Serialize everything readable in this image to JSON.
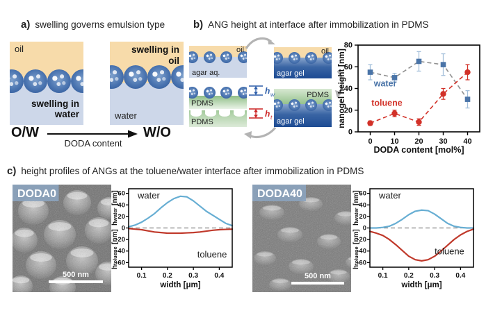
{
  "panel_a": {
    "tag": "a)",
    "title": "swelling governs emulsion type",
    "left_diagram": {
      "oil": "oil",
      "swelling_line1": "swelling in",
      "swelling_line2": "water"
    },
    "right_diagram": {
      "swelling_line1": "swelling in",
      "swelling_line2": "oil",
      "water": "water"
    },
    "left_type": "O/W",
    "right_type": "W/O",
    "arrow_label": "DODA content"
  },
  "panel_b": {
    "tag": "b)",
    "title": "ANG height at interface after immobilization in PDMS",
    "schematic": {
      "oil_aq": {
        "top": "oil",
        "bottom": "agar aq."
      },
      "oil_gel": {
        "top": "oil",
        "bottom": "agar gel"
      },
      "pdms_top": "PDMS",
      "pdms_bottom": "PDMS",
      "pdms_gel": {
        "top": "PDMS",
        "bottom": "agar gel"
      },
      "hw": {
        "base": "h",
        "sub": "w"
      },
      "ht": {
        "base": "h",
        "sub": "t"
      }
    }
  },
  "panel_c": {
    "tag": "c)",
    "title": "height profiles of ANGs at the toluene/water interface after immobilization in PDMS",
    "sem_left": {
      "label": "DODA0",
      "scalebar": "500 nm"
    },
    "sem_right": {
      "label": "DODA40",
      "scalebar": "500 nm"
    }
  },
  "chart_data": [
    {
      "id": "nanogel-height",
      "type": "scatter",
      "xlabel": "DODA content [mol%]",
      "ylabel": "nanogel height [nm]",
      "xlim": [
        -5,
        45
      ],
      "ylim": [
        0,
        80
      ],
      "xticks": [
        0,
        10,
        20,
        30,
        40
      ],
      "yticks": [
        0,
        20,
        40,
        60,
        80
      ],
      "x": [
        0,
        10,
        20,
        30,
        40
      ],
      "grid": false,
      "series": [
        {
          "name": "water",
          "marker": "square",
          "color": "#4a74a8",
          "line_color": "#909090",
          "err_color": "#a3bfda",
          "values": [
            55,
            50,
            65,
            62,
            30
          ],
          "errors": [
            7,
            4,
            9,
            10,
            8
          ],
          "label_x": 1.5,
          "label_y": 42
        },
        {
          "name": "toluene",
          "marker": "circle",
          "color": "#d23128",
          "line_color": "#d23128",
          "err_color": "#d23128",
          "values": [
            8,
            17,
            9,
            35,
            55
          ],
          "errors": [
            2,
            3,
            3,
            5,
            7
          ],
          "label_x": 0.5,
          "label_y": 24
        }
      ]
    },
    {
      "id": "profile-doda0",
      "type": "line",
      "sample": "DODA0",
      "xlabel": "width [μm]",
      "ylabel_top": {
        "base": "h",
        "sub": "water",
        "unit": "[nm]"
      },
      "ylabel_bottom": {
        "base": "h",
        "sub": "toluene",
        "unit": "[nm]"
      },
      "xlim": [
        0.05,
        0.45
      ],
      "ylim": [
        -68,
        68
      ],
      "xticks": [
        0.1,
        0.2,
        0.3,
        0.4
      ],
      "yticks": [
        -60,
        -40,
        -20,
        0,
        20,
        40,
        60
      ],
      "zero_line_dashed": true,
      "grid": false,
      "x": [
        0.05,
        0.075,
        0.1,
        0.125,
        0.15,
        0.175,
        0.2,
        0.225,
        0.25,
        0.275,
        0.3,
        0.325,
        0.35,
        0.375,
        0.4,
        0.425,
        0.45
      ],
      "series": [
        {
          "name": "water",
          "color": "#67aed3",
          "y": [
            2,
            5,
            10,
            17,
            25,
            35,
            44,
            51,
            55,
            54,
            47,
            38,
            29,
            22,
            15,
            8,
            4
          ]
        },
        {
          "name": "toluene",
          "color": "#c0392b",
          "y": [
            -1,
            -2,
            -3,
            -5,
            -7,
            -8,
            -9,
            -9,
            -9,
            -8.5,
            -8,
            -7,
            -5.5,
            -4,
            -3,
            -2.5,
            -2
          ]
        }
      ],
      "annotations": [
        {
          "text": "water",
          "x": 0.085,
          "y": 51
        },
        {
          "text": "toluene",
          "x": 0.315,
          "y": -51
        }
      ]
    },
    {
      "id": "profile-doda40",
      "type": "line",
      "sample": "DODA40",
      "xlabel": "width [μm]",
      "ylabel_top": {
        "base": "h",
        "sub": "water",
        "unit": "[nm]"
      },
      "ylabel_bottom": {
        "base": "h",
        "sub": "toluene",
        "unit": "[nm]"
      },
      "xlim": [
        0.05,
        0.45
      ],
      "ylim": [
        -68,
        68
      ],
      "xticks": [
        0.1,
        0.2,
        0.3,
        0.4
      ],
      "yticks": [
        -60,
        -40,
        -20,
        0,
        20,
        40,
        60
      ],
      "zero_line_dashed": true,
      "grid": false,
      "x": [
        0.05,
        0.075,
        0.1,
        0.125,
        0.15,
        0.175,
        0.2,
        0.225,
        0.25,
        0.275,
        0.3,
        0.325,
        0.35,
        0.375,
        0.4,
        0.425,
        0.45
      ],
      "series": [
        {
          "name": "water",
          "color": "#67aed3",
          "y": [
            0,
            0,
            1,
            3,
            8,
            15,
            23,
            29,
            31,
            30,
            24,
            16,
            8,
            3,
            1,
            0,
            0
          ]
        },
        {
          "name": "toluene",
          "color": "#c0392b",
          "y": [
            -6,
            -9,
            -13,
            -20,
            -29,
            -39,
            -49,
            -55,
            -57,
            -55,
            -49,
            -40,
            -30,
            -20,
            -12,
            -6,
            -2
          ]
        }
      ],
      "annotations": [
        {
          "text": "water",
          "x": 0.085,
          "y": 51
        },
        {
          "text": "toluene",
          "x": 0.3,
          "y": -46
        }
      ]
    }
  ],
  "colors": {
    "oil": "#f7dbaa",
    "water_phase": "#cdd7e9",
    "agar_gel": "#1d4b93",
    "pdms_green": "#9dc696",
    "nanogel_blue": "#3f6aa8",
    "arrow_gray": "#b3b3b3",
    "hw_blue": "#2b5ca8",
    "ht_red": "#cc2222",
    "sem_chip": "#8ba3bd"
  }
}
